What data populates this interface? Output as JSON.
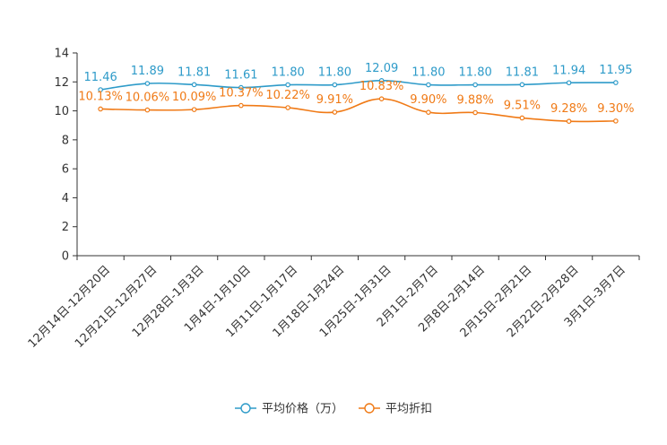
{
  "chart_data": {
    "type": "line",
    "title": "",
    "xlabel": "",
    "ylabel": "",
    "ylim": [
      0,
      14
    ],
    "yticks": [
      0,
      2,
      4,
      6,
      8,
      10,
      12,
      14
    ],
    "grid": false,
    "legend_position": "bottom",
    "categories": [
      "12月14日-12月20日",
      "12月21日-12月27日",
      "12月28日-1月3日",
      "1月4日-1月10日",
      "1月11日-1月17日",
      "1月18日-1月24日",
      "1月25日-1月31日",
      "2月1日-2月7日",
      "2月8日-2月14日",
      "2月15日-2月21日",
      "2月22日-2月28日",
      "3月1日-3月7日"
    ],
    "series": [
      {
        "name": "平均价格（万）",
        "color": "#2e9bc9",
        "values": [
          11.46,
          11.89,
          11.81,
          11.61,
          11.8,
          11.8,
          12.09,
          11.8,
          11.8,
          11.81,
          11.94,
          11.95
        ],
        "labels": [
          "11.46",
          "11.89",
          "11.81",
          "11.61",
          "11.80",
          "11.80",
          "12.09",
          "11.80",
          "11.80",
          "11.81",
          "11.94",
          "11.95"
        ]
      },
      {
        "name": "平均折扣",
        "color": "#f07a16",
        "values": [
          10.13,
          10.06,
          10.09,
          10.37,
          10.22,
          9.91,
          10.83,
          9.9,
          9.88,
          9.51,
          9.28,
          9.3
        ],
        "labels": [
          "10.13%",
          "10.06%",
          "10.09%",
          "10.37%",
          "10.22%",
          "9.91%",
          "10.83%",
          "9.90%",
          "9.88%",
          "9.51%",
          "9.28%",
          "9.30%"
        ]
      }
    ]
  }
}
